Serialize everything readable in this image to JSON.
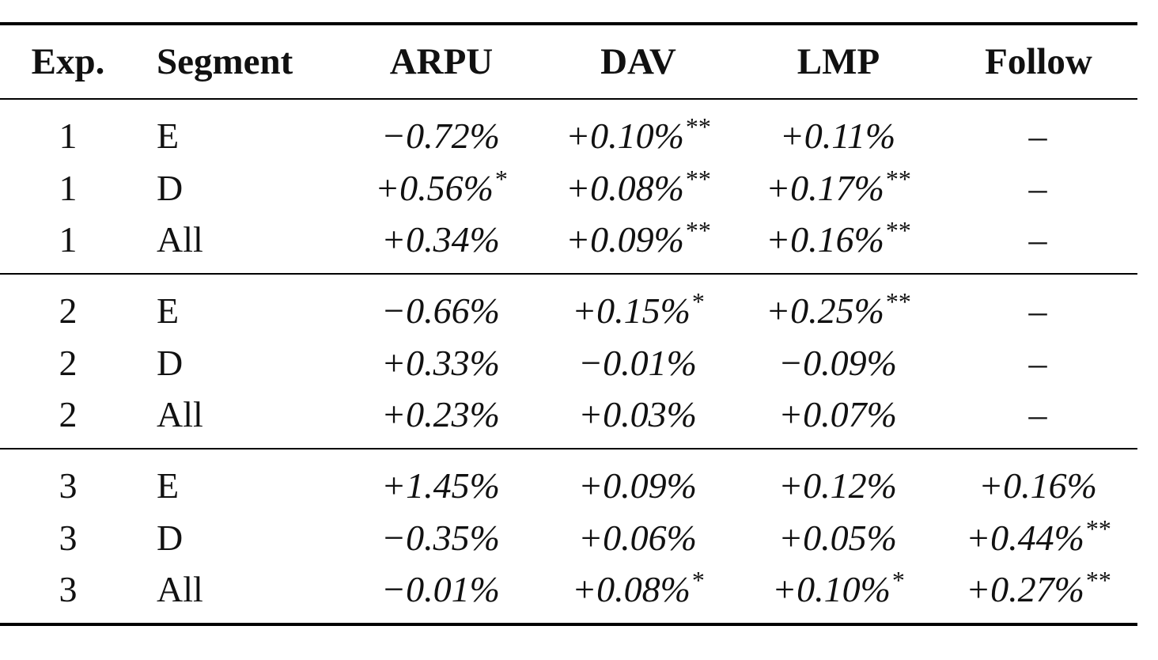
{
  "headers": [
    "Exp.",
    "Segment",
    "ARPU",
    "DAV",
    "LMP",
    "Follow"
  ],
  "groups": [
    {
      "rows": [
        {
          "exp": "1",
          "segment": "E",
          "arpu": "−0.72%",
          "arpu_sig": "",
          "dav": "+0.10%",
          "dav_sig": "**",
          "lmp": "+0.11%",
          "lmp_sig": "",
          "follow": "–",
          "follow_sig": ""
        },
        {
          "exp": "1",
          "segment": "D",
          "arpu": "+0.56%",
          "arpu_sig": "*",
          "dav": "+0.08%",
          "dav_sig": "**",
          "lmp": "+0.17%",
          "lmp_sig": "**",
          "follow": "–",
          "follow_sig": ""
        },
        {
          "exp": "1",
          "segment": "All",
          "arpu": "+0.34%",
          "arpu_sig": "",
          "dav": "+0.09%",
          "dav_sig": "**",
          "lmp": "+0.16%",
          "lmp_sig": "**",
          "follow": "–",
          "follow_sig": ""
        }
      ]
    },
    {
      "rows": [
        {
          "exp": "2",
          "segment": "E",
          "arpu": "−0.66%",
          "arpu_sig": "",
          "dav": "+0.15%",
          "dav_sig": "*",
          "lmp": "+0.25%",
          "lmp_sig": "**",
          "follow": "–",
          "follow_sig": ""
        },
        {
          "exp": "2",
          "segment": "D",
          "arpu": "+0.33%",
          "arpu_sig": "",
          "dav": "−0.01%",
          "dav_sig": "",
          "lmp": "−0.09%",
          "lmp_sig": "",
          "follow": "–",
          "follow_sig": ""
        },
        {
          "exp": "2",
          "segment": "All",
          "arpu": "+0.23%",
          "arpu_sig": "",
          "dav": "+0.03%",
          "dav_sig": "",
          "lmp": "+0.07%",
          "lmp_sig": "",
          "follow": "–",
          "follow_sig": ""
        }
      ]
    },
    {
      "rows": [
        {
          "exp": "3",
          "segment": "E",
          "arpu": "+1.45%",
          "arpu_sig": "",
          "dav": "+0.09%",
          "dav_sig": "",
          "lmp": "+0.12%",
          "lmp_sig": "",
          "follow": "+0.16%",
          "follow_sig": ""
        },
        {
          "exp": "3",
          "segment": "D",
          "arpu": "−0.35%",
          "arpu_sig": "",
          "dav": "+0.06%",
          "dav_sig": "",
          "lmp": "+0.05%",
          "lmp_sig": "",
          "follow": "+0.44%",
          "follow_sig": "**"
        },
        {
          "exp": "3",
          "segment": "All",
          "arpu": "−0.01%",
          "arpu_sig": "",
          "dav": "+0.08%",
          "dav_sig": "*",
          "lmp": "+0.10%",
          "lmp_sig": "*",
          "follow": "+0.27%",
          "follow_sig": "**"
        }
      ]
    }
  ]
}
